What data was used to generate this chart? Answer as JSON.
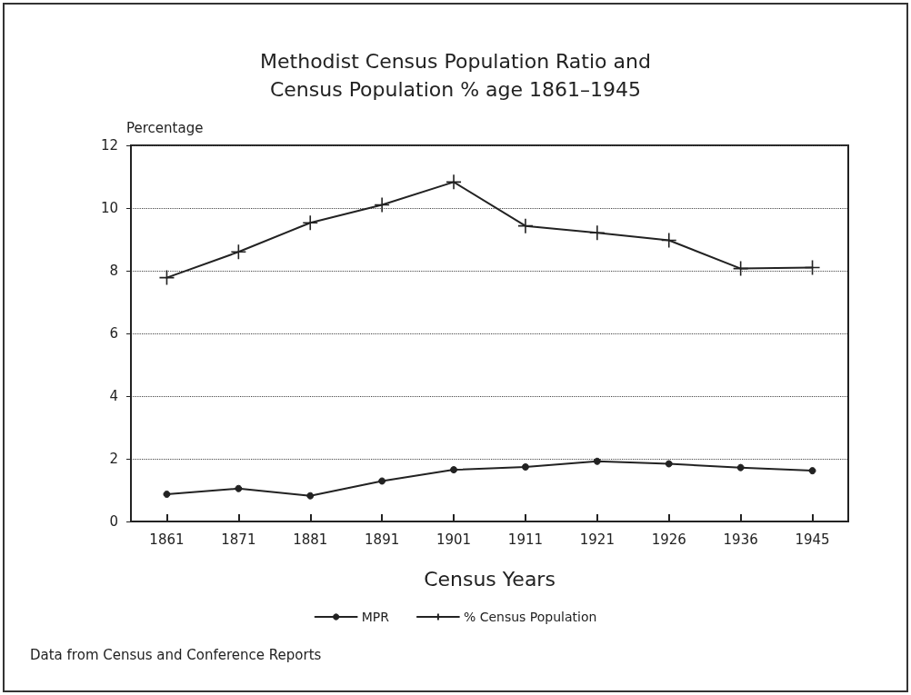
{
  "chart_data": {
    "type": "line",
    "title": "Methodist Census Population Ratio and\nCensus Population % age 1861–1945",
    "xlabel": "Census Years",
    "ylabel": "Percentage",
    "categories": [
      "1861",
      "1871",
      "1881",
      "1891",
      "1901",
      "1911",
      "1921",
      "1926",
      "1936",
      "1945"
    ],
    "series": [
      {
        "name": "MPR",
        "color": "#222222",
        "marker": "circle",
        "values": [
          0.87,
          1.05,
          0.82,
          1.29,
          1.65,
          1.74,
          1.92,
          1.84,
          1.72,
          1.62
        ]
      },
      {
        "name": "% Census Population",
        "color": "#222222",
        "marker": "cross",
        "values": [
          7.78,
          8.6,
          9.53,
          10.1,
          10.83,
          9.43,
          9.21,
          8.97,
          8.07,
          8.1
        ]
      }
    ],
    "ylim": [
      0,
      12
    ],
    "yticks": [
      0,
      2,
      4,
      6,
      8,
      10,
      12
    ],
    "grid": "y",
    "legend": "bottom",
    "line_style": "solid",
    "annotations": [
      "Data from Census and Conference Reports"
    ]
  }
}
